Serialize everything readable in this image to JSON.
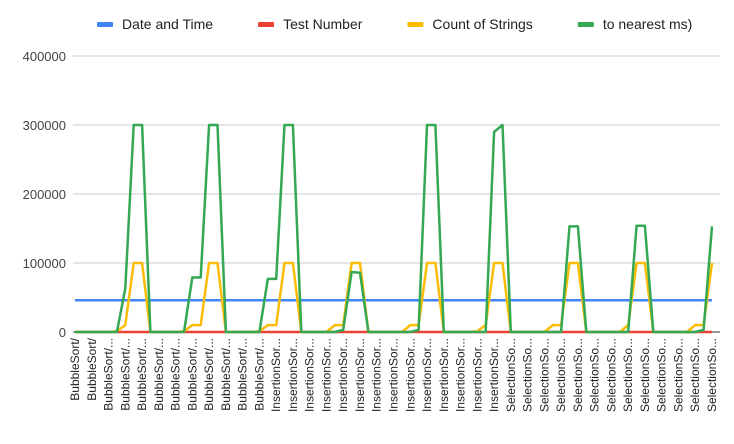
{
  "chart_data": {
    "type": "line",
    "categories": [
      "BubbleSort/",
      null,
      "BubbleSort/",
      null,
      "BubbleSort/...",
      null,
      "BubbleSort/...",
      null,
      "BubbleSort/...",
      null,
      "BubbleSort/...",
      null,
      "BubbleSort/...",
      null,
      "BubbleSort/...",
      null,
      "BubbleSort/...",
      null,
      "BubbleSort/...",
      null,
      "BubbleSort/...",
      null,
      "BubbleSort/...",
      null,
      "InsertionSor...",
      null,
      "InsertionSor...",
      null,
      "InsertionSor...",
      null,
      "InsertionSor...",
      null,
      "InsertionSor...",
      null,
      "InsertionSor...",
      null,
      "InsertionSor...",
      null,
      "InsertionSor...",
      null,
      "InsertionSor...",
      null,
      "InsertionSor...",
      null,
      "InsertionSor...",
      null,
      "InsertionSor...",
      null,
      "InsertionSor...",
      null,
      "InsertionSor...",
      null,
      "SelectionSo...",
      null,
      "SelectionSo...",
      null,
      "SelectionSo...",
      null,
      "SelectionSo...",
      null,
      "SelectionSo...",
      null,
      "SelectionSo...",
      null,
      "SelectionSo...",
      null,
      "SelectionSo...",
      null,
      "SelectionSo...",
      null,
      "SelectionSo...",
      null,
      "SelectionSo...",
      null,
      "SelectionSo...",
      null,
      "SelectionSo..."
    ],
    "series": [
      {
        "name": "Date and Time",
        "color": "#4285f4",
        "values": [
          46000,
          46000,
          46000,
          46000,
          46000,
          46000,
          46000,
          46000,
          46000,
          46000,
          46000,
          46000,
          46000,
          46000,
          46000,
          46000,
          46000,
          46000,
          46000,
          46000,
          46000,
          46000,
          46000,
          46000,
          46000,
          46000,
          46000,
          46000,
          46000,
          46000,
          46000,
          46000,
          46000,
          46000,
          46000,
          46000,
          46000,
          46000,
          46000,
          46000,
          46000,
          46000,
          46000,
          46000,
          46000,
          46000,
          46000,
          46000,
          46000,
          46000,
          46000,
          46000,
          46000,
          46000,
          46000,
          46000,
          46000,
          46000,
          46000,
          46000,
          46000,
          46000,
          46000,
          46000,
          46000,
          46000,
          46000,
          46000,
          46000,
          46000,
          46000,
          46000,
          46000,
          46000,
          46000,
          46000,
          46000
        ]
      },
      {
        "name": "Test Number",
        "color": "#ea4335",
        "values": [
          1,
          1,
          1,
          1,
          1,
          1,
          1,
          1,
          1,
          1,
          1,
          1,
          1,
          1,
          1,
          1,
          1,
          1,
          1,
          1,
          1,
          1,
          1,
          1,
          1,
          1,
          1,
          1,
          1,
          1,
          1,
          1,
          1,
          1,
          1,
          1,
          1,
          1,
          1,
          1,
          1,
          1,
          1,
          1,
          1,
          1,
          1,
          1,
          1,
          1,
          1,
          1,
          1,
          1,
          1,
          1,
          1,
          1,
          1,
          1,
          1,
          1,
          1,
          1,
          1,
          1,
          1,
          1,
          1,
          1,
          1,
          1,
          1,
          1,
          1,
          1,
          1
        ]
      },
      {
        "name": "Count of Strings",
        "color": "#fbbc04",
        "values": [
          0,
          0,
          0,
          0,
          0,
          1000,
          10000,
          100000,
          100000,
          0,
          0,
          0,
          0,
          1000,
          10000,
          10000,
          100000,
          100000,
          0,
          0,
          0,
          0,
          1000,
          10000,
          10000,
          100000,
          100000,
          0,
          0,
          0,
          0,
          10000,
          10000,
          100000,
          100000,
          0,
          0,
          0,
          0,
          0,
          10000,
          10000,
          100000,
          100000,
          0,
          0,
          0,
          0,
          1000,
          10000,
          100000,
          100000,
          0,
          0,
          0,
          0,
          0,
          10000,
          10000,
          100000,
          100000,
          0,
          0,
          0,
          0,
          0,
          10000,
          100000,
          100000,
          0,
          0,
          0,
          0,
          0,
          10000,
          10000,
          100000
        ]
      },
      {
        "name": "to nearest ms)",
        "color": "#34a853",
        "values": [
          0,
          0,
          0,
          0,
          0,
          0,
          63000,
          300000,
          300000,
          0,
          0,
          0,
          0,
          0,
          79000,
          79000,
          300000,
          300000,
          0,
          0,
          0,
          0,
          0,
          77000,
          77000,
          300000,
          300000,
          0,
          0,
          0,
          0,
          0,
          3000,
          87000,
          86000,
          0,
          0,
          0,
          0,
          0,
          0,
          3000,
          300000,
          300000,
          0,
          0,
          0,
          0,
          0,
          0,
          290000,
          300000,
          0,
          0,
          0,
          0,
          0,
          0,
          0,
          153000,
          153000,
          0,
          0,
          0,
          0,
          0,
          0,
          154000,
          154000,
          0,
          0,
          0,
          0,
          0,
          0,
          3000,
          153000
        ]
      }
    ],
    "ylim": [
      0,
      400000
    ],
    "yticks": [
      0,
      100000,
      200000,
      300000,
      400000
    ],
    "grid": true,
    "legend": "top"
  }
}
